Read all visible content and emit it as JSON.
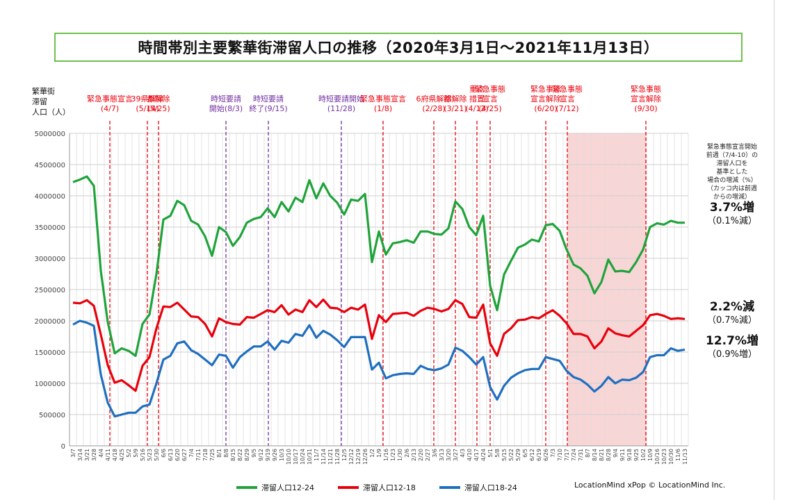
{
  "title": "時間帯別主要繁華街滞留人口の推移（2020年3月1日～2021年11月13日）",
  "y_unit_label": [
    "繁華街",
    "滞留",
    "人口（人）"
  ],
  "events": [
    {
      "lines": [
        "緊急事態宣言",
        "(4/7)"
      ],
      "color": "red",
      "week": 5.3
    },
    {
      "lines": [
        "39県解除",
        "(5/14)"
      ],
      "color": "red",
      "week": 10.7
    },
    {
      "lines": [
        "都解除",
        "(5/25)"
      ],
      "color": "red",
      "week": 12.3
    },
    {
      "lines": [
        "時短要請",
        "開始(8/3)"
      ],
      "color": "purple",
      "week": 22.0
    },
    {
      "lines": [
        "時短要請",
        "終了(9/15)"
      ],
      "color": "purple",
      "week": 28.1
    },
    {
      "lines": [
        "時短要請開始",
        "(11/28)"
      ],
      "color": "purple",
      "week": 38.6
    },
    {
      "lines": [
        "緊急事態宣言",
        "(1/8)"
      ],
      "color": "red",
      "week": 44.6
    },
    {
      "lines": [
        "6府県解除",
        "(2/28)"
      ],
      "color": "red",
      "week": 51.9
    },
    {
      "lines": [
        "都解除",
        "(3/21)"
      ],
      "color": "red",
      "week": 55.0
    },
    {
      "lines": [
        "重点",
        "措置",
        "(4/12)"
      ],
      "color": "red",
      "week": 58.1
    },
    {
      "lines": [
        "緊急事態",
        "宣言",
        "(4/25)"
      ],
      "color": "red",
      "week": 60.0
    },
    {
      "lines": [
        "緊急事態",
        "宣言解除",
        "(6/20)"
      ],
      "color": "red",
      "week": 68.0
    },
    {
      "lines": [
        "緊急事態",
        "宣言",
        "(7/12)"
      ],
      "color": "red",
      "week": 71.1
    },
    {
      "lines": [
        "緊急事態",
        "宣言解除",
        "(9/30)"
      ],
      "color": "red",
      "week": 82.4
    }
  ],
  "shaded_period": {
    "from_week": 71.1,
    "to_week": 82.4,
    "color": "#f9d6d6"
  },
  "note_text": [
    "緊急事態宣言開始",
    "前週（7/4-10）の",
    "滞留人口を",
    "基準とした",
    "場合の増減（%）",
    "（カッコ内は前週",
    "からの増減）"
  ],
  "annotations": [
    {
      "big": "3.7%増",
      "small": "（0.1%減）"
    },
    {
      "big": "2.2%減",
      "small": "（0.7%減）"
    },
    {
      "big": "12.7%増",
      "small": "（0.9%増）"
    }
  ],
  "credit": "LocationMind xPop © LocationMind Inc.",
  "chart_data": {
    "type": "line",
    "ylim": [
      0,
      5000000
    ],
    "yticks": [
      0,
      500000,
      1000000,
      1500000,
      2000000,
      2500000,
      3000000,
      3500000,
      4000000,
      4500000,
      5000000
    ],
    "grid": true,
    "x": [
      "3/7",
      "3/14",
      "3/21",
      "3/28",
      "4/4",
      "4/11",
      "4/18",
      "4/25",
      "5/2",
      "5/9",
      "5/16",
      "5/23",
      "5/30",
      "6/6",
      "6/13",
      "6/20",
      "6/27",
      "7/4",
      "7/11",
      "7/18",
      "7/25",
      "8/1",
      "8/8",
      "8/15",
      "8/22",
      "8/29",
      "9/5",
      "9/12",
      "9/19",
      "9/26",
      "10/3",
      "10/10",
      "10/17",
      "10/24",
      "10/31",
      "11/7",
      "11/14",
      "11/21",
      "11/28",
      "12/5",
      "12/12",
      "12/19",
      "12/26",
      "1/2",
      "1/9",
      "1/16",
      "1/23",
      "1/30",
      "2/6",
      "2/13",
      "2/20",
      "2/27",
      "3/6",
      "3/13",
      "3/20",
      "3/27",
      "4/3",
      "4/10",
      "4/17",
      "4/24",
      "5/1",
      "5/8",
      "5/15",
      "5/22",
      "5/29",
      "6/5",
      "6/12",
      "6/19",
      "6/26",
      "7/3",
      "7/10",
      "7/17",
      "7/24",
      "7/31",
      "8/7",
      "8/14",
      "8/21",
      "8/28",
      "9/4",
      "9/11",
      "9/18",
      "9/25",
      "10/2",
      "10/9",
      "10/16",
      "10/23",
      "10/30",
      "11/6",
      "11/13"
    ],
    "x_tick_labels": [
      "3/7",
      "3/14",
      "3/21",
      "3/28",
      "4/4",
      "4/11",
      "4/18",
      "4/25",
      "5/2",
      "5/9",
      "5/16",
      "5/23",
      "5/30",
      "6/6",
      "6/13",
      "6/20",
      "6/27",
      "7/4",
      "7/11",
      "7/18",
      "7/25",
      "8/1",
      "8/8",
      "8/15",
      "8/22",
      "8/29",
      "9/5",
      "9/12",
      "9/19",
      "9/26",
      "10/3",
      "10/10",
      "10/17",
      "10/24",
      "10/31",
      "11/7",
      "11/14",
      "11/21",
      "11/28",
      "12/5",
      "12/12",
      "12/19",
      "12/26",
      "1/2",
      "1/9",
      "1/16",
      "1/23",
      "1/30",
      "2/6",
      "2/13",
      "2/20",
      "2/27",
      "3/6",
      "3/13",
      "3/20",
      "3/27",
      "4/3",
      "4/10",
      "4/17",
      "4/24",
      "5/1",
      "5/8",
      "5/15",
      "5/22",
      "5/29",
      "6/5",
      "6/12",
      "6/19",
      "6/26",
      "7/3",
      "7/10",
      "7/17",
      "7/24",
      "7/31",
      "8/7",
      "8/14",
      "8/21",
      "8/28",
      "9/4",
      "9/11",
      "9/18",
      "9/25",
      "10/2",
      "10/9",
      "10/16",
      "10/23",
      "10/30",
      "11/6",
      "11/13"
    ],
    "series": [
      {
        "name": "滞留人口12-24",
        "color": "#1fa33a",
        "values": [
          4220000,
          4260000,
          4310000,
          4160000,
          2800000,
          1980000,
          1480000,
          1560000,
          1520000,
          1440000,
          1950000,
          2100000,
          2750000,
          3620000,
          3680000,
          3920000,
          3850000,
          3600000,
          3540000,
          3350000,
          3040000,
          3500000,
          3420000,
          3200000,
          3340000,
          3570000,
          3630000,
          3660000,
          3800000,
          3660000,
          3900000,
          3750000,
          3970000,
          3900000,
          4250000,
          3960000,
          4200000,
          4000000,
          3890000,
          3700000,
          3940000,
          3920000,
          4030000,
          2940000,
          3430000,
          3060000,
          3240000,
          3260000,
          3290000,
          3250000,
          3430000,
          3430000,
          3390000,
          3380000,
          3480000,
          3910000,
          3790000,
          3500000,
          3370000,
          3680000,
          2560000,
          2170000,
          2740000,
          2960000,
          3170000,
          3220000,
          3300000,
          3270000,
          3530000,
          3550000,
          3440000,
          3140000,
          2900000,
          2840000,
          2720000,
          2440000,
          2620000,
          2980000,
          2790000,
          2800000,
          2780000,
          2940000,
          3140000,
          3500000,
          3560000,
          3540000,
          3600000,
          3570000,
          3570000
        ]
      },
      {
        "name": "滞留人口12-18",
        "color": "#e8000b",
        "values": [
          2290000,
          2280000,
          2330000,
          2240000,
          1780000,
          1290000,
          1010000,
          1050000,
          970000,
          880000,
          1280000,
          1420000,
          1880000,
          2230000,
          2220000,
          2290000,
          2180000,
          2070000,
          2060000,
          1950000,
          1750000,
          2040000,
          1980000,
          1950000,
          1940000,
          2060000,
          2050000,
          2110000,
          2170000,
          2140000,
          2250000,
          2100000,
          2180000,
          2140000,
          2330000,
          2220000,
          2340000,
          2210000,
          2200000,
          2140000,
          2210000,
          2180000,
          2260000,
          1710000,
          2090000,
          1980000,
          2110000,
          2120000,
          2130000,
          2080000,
          2160000,
          2210000,
          2190000,
          2150000,
          2190000,
          2330000,
          2270000,
          2060000,
          2050000,
          2260000,
          1640000,
          1440000,
          1790000,
          1880000,
          2010000,
          2020000,
          2060000,
          2040000,
          2110000,
          2170000,
          2080000,
          1960000,
          1790000,
          1790000,
          1750000,
          1560000,
          1670000,
          1880000,
          1800000,
          1770000,
          1750000,
          1840000,
          1930000,
          2090000,
          2110000,
          2080000,
          2030000,
          2040000,
          2030000
        ]
      },
      {
        "name": "滞留人口18-24",
        "color": "#1f6fbf",
        "values": [
          1940000,
          2000000,
          1970000,
          1920000,
          1140000,
          690000,
          470000,
          500000,
          530000,
          530000,
          630000,
          660000,
          1000000,
          1380000,
          1440000,
          1640000,
          1670000,
          1530000,
          1470000,
          1380000,
          1290000,
          1460000,
          1440000,
          1250000,
          1420000,
          1510000,
          1590000,
          1590000,
          1670000,
          1540000,
          1680000,
          1650000,
          1790000,
          1760000,
          1930000,
          1730000,
          1840000,
          1780000,
          1690000,
          1580000,
          1740000,
          1740000,
          1740000,
          1220000,
          1330000,
          1080000,
          1130000,
          1150000,
          1160000,
          1150000,
          1280000,
          1230000,
          1210000,
          1240000,
          1300000,
          1570000,
          1520000,
          1420000,
          1300000,
          1420000,
          940000,
          740000,
          960000,
          1090000,
          1160000,
          1210000,
          1230000,
          1230000,
          1420000,
          1390000,
          1360000,
          1200000,
          1100000,
          1060000,
          980000,
          870000,
          960000,
          1100000,
          1000000,
          1060000,
          1050000,
          1090000,
          1180000,
          1420000,
          1450000,
          1450000,
          1560000,
          1520000,
          1540000
        ]
      }
    ],
    "legend": "bottom"
  }
}
